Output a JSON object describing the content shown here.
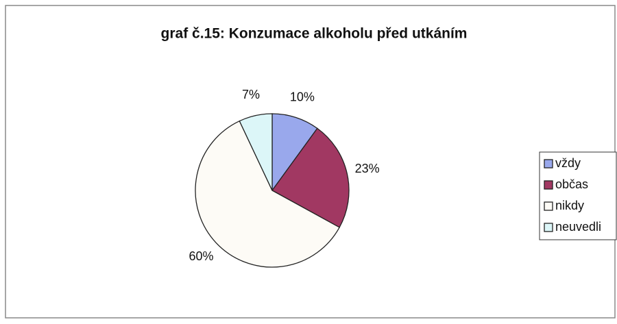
{
  "chart_data": {
    "type": "pie",
    "title": "graf č.15: Konzumace alkoholu před utkáním",
    "categories": [
      "vždy",
      "občas",
      "nikdy",
      "neuvedli"
    ],
    "values": [
      10,
      23,
      60,
      7
    ],
    "value_labels": [
      "10%",
      "23%",
      "60%",
      "7%"
    ],
    "colors": [
      "#99a8ec",
      "#a13862",
      "#fdfbf6",
      "#dcf6f8"
    ],
    "legend": "right"
  }
}
